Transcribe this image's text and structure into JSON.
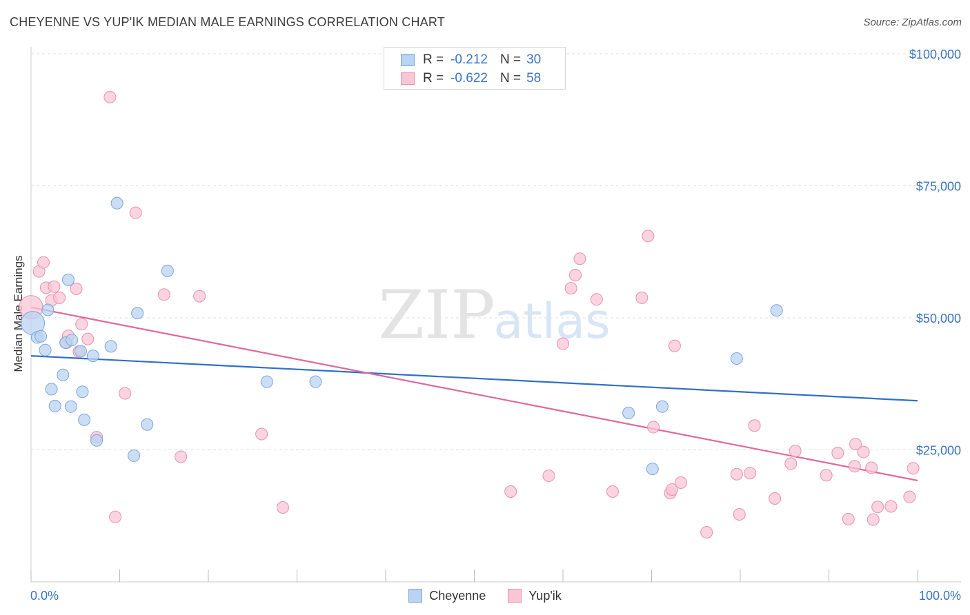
{
  "title": "CHEYENNE VS YUP'IK MEDIAN MALE EARNINGS CORRELATION CHART",
  "source": "Source: ZipAtlas.com",
  "watermark": {
    "zip": "ZIP",
    "atlas": "atlas"
  },
  "legend_top": [
    {
      "r_label": "R =",
      "r_value": "-0.212",
      "n_label": "N =",
      "n_value": "30"
    },
    {
      "r_label": "R =",
      "r_value": "-0.622",
      "n_label": "N =",
      "n_value": "58"
    }
  ],
  "legend_bottom": [
    "Cheyenne",
    "Yup'ik"
  ],
  "chart_data": {
    "type": "scatter",
    "ylabel": "Median Male Earnings",
    "xlim": [
      0,
      100
    ],
    "ylim": [
      0,
      100000
    ],
    "x_tick_labels": [
      "0.0%",
      "100.0%"
    ],
    "y_ticks": [
      25000,
      50000,
      75000,
      100000
    ],
    "y_tick_labels": [
      "$25,000",
      "$50,000",
      "$75,000",
      "$100,000"
    ],
    "grid": true,
    "legend_placement": "bottom",
    "colors": {
      "cheyenne_fill": "#b9d3f2",
      "cheyenne_stroke": "#7aa6dc",
      "cheyenne_line": "#2f6fcc",
      "yupik_fill": "#f8c6d5",
      "yupik_stroke": "#e890ae",
      "yupik_line": "#e0679a",
      "axis_text": "#3a74c4"
    },
    "series": [
      {
        "name": "Cheyenne",
        "trend": {
          "x": [
            0,
            100
          ],
          "y": [
            42800,
            34300
          ]
        },
        "points": [
          [
            0.2,
            49000
          ],
          [
            0.7,
            46300
          ],
          [
            1.1,
            46500
          ],
          [
            1.6,
            43900
          ],
          [
            1.9,
            51500
          ],
          [
            2.3,
            36500
          ],
          [
            2.7,
            33300
          ],
          [
            3.6,
            39200
          ],
          [
            3.9,
            45300
          ],
          [
            4.2,
            57200
          ],
          [
            4.5,
            33200
          ],
          [
            4.6,
            45800
          ],
          [
            5.6,
            43700
          ],
          [
            5.8,
            36000
          ],
          [
            6.0,
            30700
          ],
          [
            7.0,
            42800
          ],
          [
            7.4,
            26800
          ],
          [
            9.0,
            44600
          ],
          [
            9.7,
            71700
          ],
          [
            11.6,
            23900
          ],
          [
            12.0,
            50900
          ],
          [
            13.1,
            29800
          ],
          [
            15.4,
            58900
          ],
          [
            26.6,
            37900
          ],
          [
            32.1,
            37900
          ],
          [
            67.4,
            32000
          ],
          [
            70.1,
            21400
          ],
          [
            71.2,
            33200
          ],
          [
            79.6,
            42300
          ],
          [
            84.1,
            51400
          ]
        ]
      },
      {
        "name": "Yup'ik",
        "trend": {
          "x": [
            0,
            100
          ],
          "y": [
            52000,
            19200
          ]
        },
        "points": [
          [
            0.0,
            52000
          ],
          [
            0.9,
            58800
          ],
          [
            1.4,
            60500
          ],
          [
            1.7,
            55700
          ],
          [
            2.3,
            53300
          ],
          [
            2.6,
            55900
          ],
          [
            3.2,
            53800
          ],
          [
            4.0,
            45300
          ],
          [
            4.2,
            46600
          ],
          [
            5.1,
            55500
          ],
          [
            5.4,
            43600
          ],
          [
            5.7,
            48800
          ],
          [
            6.4,
            46000
          ],
          [
            7.4,
            27400
          ],
          [
            8.9,
            91800
          ],
          [
            9.5,
            12300
          ],
          [
            10.6,
            35700
          ],
          [
            11.8,
            69900
          ],
          [
            15.0,
            54400
          ],
          [
            16.9,
            23700
          ],
          [
            19.0,
            54100
          ],
          [
            26.0,
            28000
          ],
          [
            28.4,
            14100
          ],
          [
            54.1,
            17100
          ],
          [
            58.4,
            20100
          ],
          [
            60.0,
            45100
          ],
          [
            60.9,
            55600
          ],
          [
            61.4,
            58100
          ],
          [
            61.9,
            61200
          ],
          [
            63.8,
            53500
          ],
          [
            65.6,
            17100
          ],
          [
            68.9,
            53800
          ],
          [
            69.6,
            65500
          ],
          [
            70.2,
            29300
          ],
          [
            72.1,
            16800
          ],
          [
            72.3,
            17500
          ],
          [
            72.6,
            44700
          ],
          [
            73.3,
            18800
          ],
          [
            76.2,
            9400
          ],
          [
            79.6,
            20400
          ],
          [
            79.9,
            12800
          ],
          [
            81.1,
            20600
          ],
          [
            81.6,
            29600
          ],
          [
            83.9,
            15800
          ],
          [
            85.7,
            22400
          ],
          [
            86.2,
            24800
          ],
          [
            89.7,
            20200
          ],
          [
            91.0,
            24400
          ],
          [
            92.2,
            11900
          ],
          [
            92.9,
            21900
          ],
          [
            93.0,
            26100
          ],
          [
            93.9,
            24600
          ],
          [
            94.8,
            21600
          ],
          [
            95.0,
            11800
          ],
          [
            95.5,
            14200
          ],
          [
            97.0,
            14300
          ],
          [
            99.1,
            16100
          ],
          [
            99.5,
            21500
          ]
        ]
      }
    ]
  }
}
